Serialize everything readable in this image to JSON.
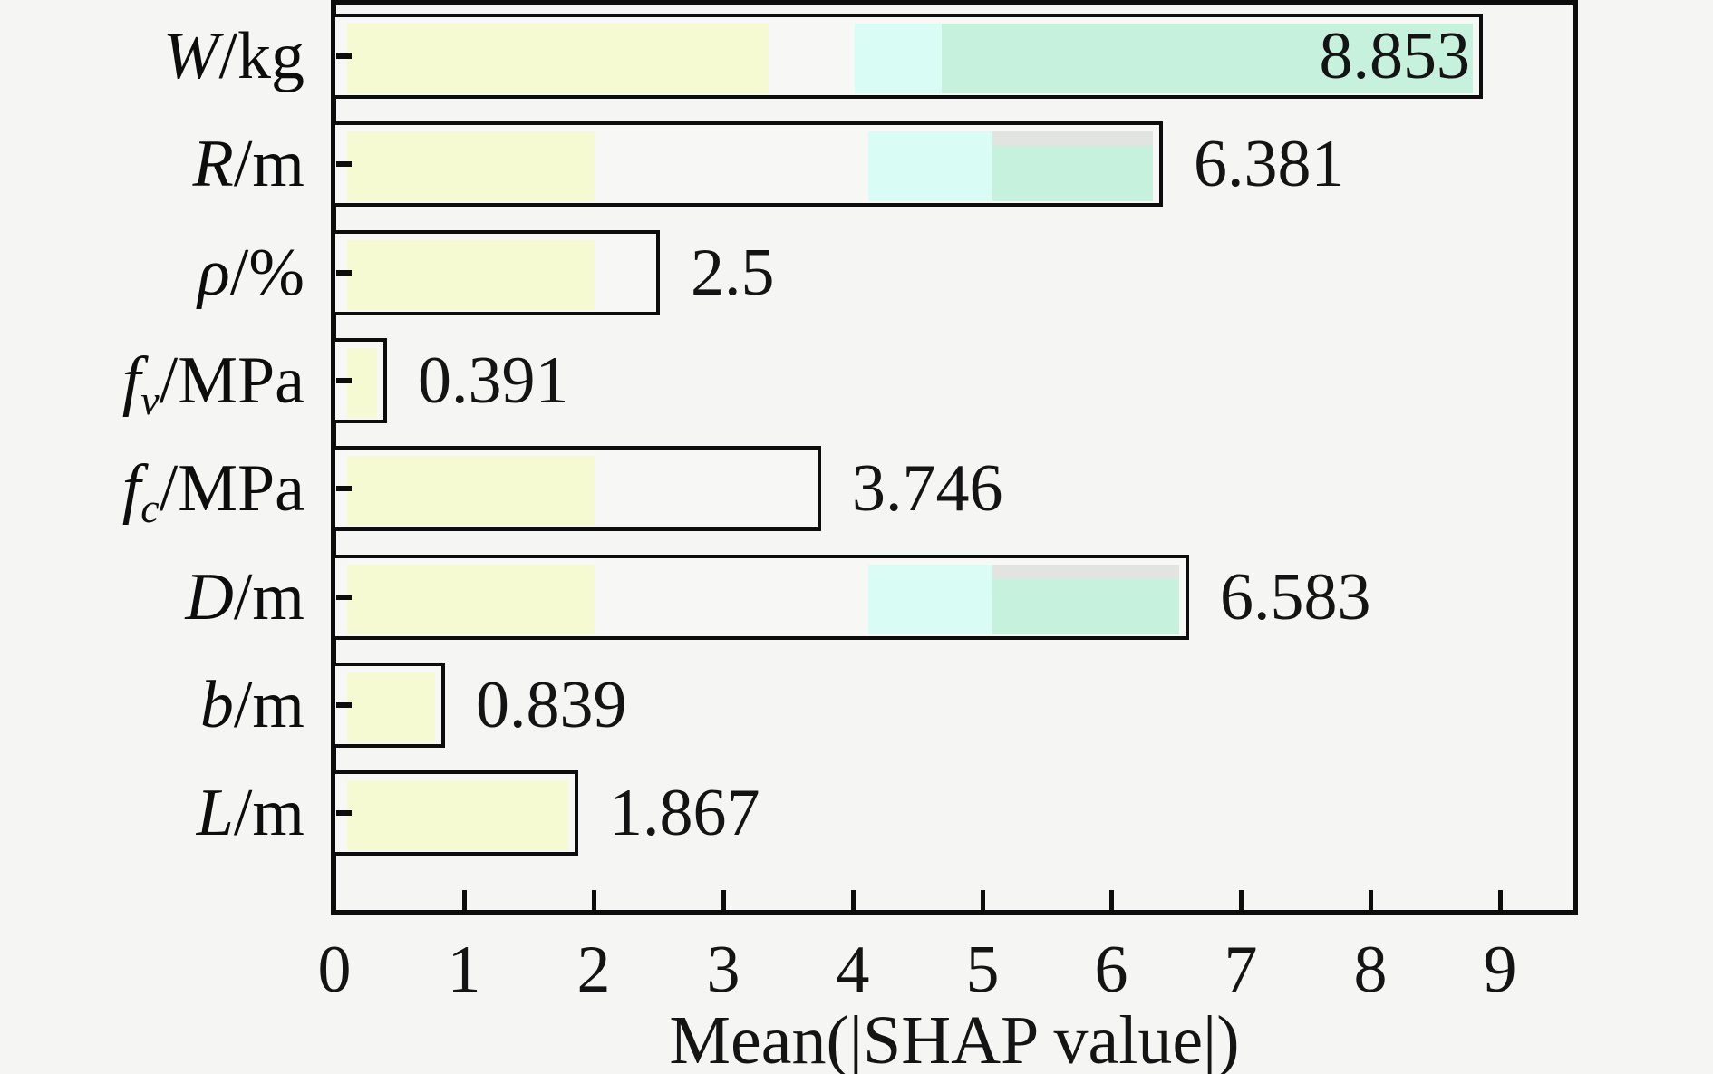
{
  "chart_data": {
    "type": "bar",
    "orientation": "horizontal",
    "xlabel": "Mean(|SHAP value|)",
    "ylabel": "",
    "xlim": [
      0,
      9.57
    ],
    "xticks": [
      "0",
      "1",
      "2",
      "3",
      "4",
      "5",
      "6",
      "7",
      "8",
      "9"
    ],
    "grid": false,
    "legend": "none",
    "categories": [
      "W/kg",
      "R/m",
      "ρ/%",
      "fv/MPa",
      "fc/MPa",
      "D/m",
      "b/m",
      "L/m"
    ],
    "values": [
      8.853,
      6.381,
      2.5,
      0.391,
      3.746,
      6.583,
      0.839,
      1.867
    ],
    "colors": {
      "yellow": "#f6fad2",
      "white": "#f7f7f5",
      "cyan": "#d9fdf4",
      "green": "#c6f1dc",
      "gray_strip": "#e2e4e2",
      "outline": "#0d0d0d",
      "background": "#f5f5f4"
    },
    "bars": [
      {
        "label": {
          "var": "W",
          "sub": "",
          "unit": "/kg"
        },
        "value": 8.853,
        "value_label": "8.853",
        "label_inside": true,
        "boundaries": [
          3.35,
          4.02,
          4.69
        ],
        "seg_colors": [
          "yellow",
          "white",
          "cyan",
          "green"
        ]
      },
      {
        "label": {
          "var": "R",
          "sub": "",
          "unit": "/m"
        },
        "value": 6.381,
        "value_label": "6.381",
        "label_inside": false,
        "boundaries": [
          2.01,
          4.12,
          5.08
        ],
        "seg_colors": [
          "yellow",
          "white",
          "cyan",
          "green"
        ],
        "top_strip_from": 5.08
      },
      {
        "label": {
          "var": "ρ",
          "sub": "",
          "unit": "/%"
        },
        "value": 2.5,
        "value_label": "2.5",
        "label_inside": false,
        "boundaries": [
          2.01
        ],
        "seg_colors": [
          "yellow",
          "white"
        ]
      },
      {
        "label": {
          "var": "f",
          "sub": "v",
          "unit": "/MPa"
        },
        "value": 0.391,
        "value_label": "0.391",
        "label_inside": false,
        "boundaries": [],
        "seg_colors": [
          "yellow"
        ]
      },
      {
        "label": {
          "var": "f",
          "sub": "c",
          "unit": "/MPa"
        },
        "value": 3.746,
        "value_label": "3.746",
        "label_inside": false,
        "boundaries": [
          2.01
        ],
        "seg_colors": [
          "yellow",
          "white"
        ]
      },
      {
        "label": {
          "var": "D",
          "sub": "",
          "unit": "/m"
        },
        "value": 6.583,
        "value_label": "6.583",
        "label_inside": false,
        "boundaries": [
          2.01,
          4.12,
          5.08
        ],
        "seg_colors": [
          "yellow",
          "white",
          "cyan",
          "green"
        ],
        "top_strip_from": 5.08
      },
      {
        "label": {
          "var": "b",
          "sub": "",
          "unit": "/m"
        },
        "value": 0.839,
        "value_label": "0.839",
        "label_inside": false,
        "boundaries": [],
        "seg_colors": [
          "yellow"
        ]
      },
      {
        "label": {
          "var": "L",
          "sub": "",
          "unit": "/m"
        },
        "value": 1.867,
        "value_label": "1.867",
        "label_inside": false,
        "boundaries": [],
        "seg_colors": [
          "yellow"
        ]
      }
    ]
  }
}
